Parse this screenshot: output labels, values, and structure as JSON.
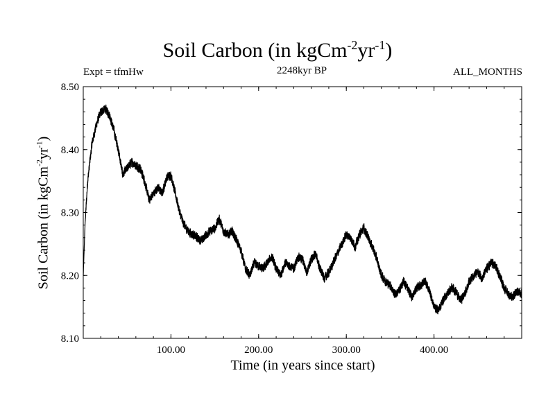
{
  "chart_data": {
    "type": "line",
    "title": "Soil Carbon (in kgCm",
    "title_sup1": "-2",
    "title_mid": "yr",
    "title_sup2": "-1",
    "title_close": ")",
    "expt_label": "Expt = tfmHw",
    "period_label": "2248kyr BP",
    "months_label": "ALL_MONTHS",
    "xlabel": "Time (in years since start)",
    "ylabel": "Soil Carbon (in kgCm",
    "ylabel_sup1": "-2",
    "ylabel_mid": "yr",
    "ylabel_sup2": "-1",
    "ylabel_close": ")",
    "xlim": [
      0,
      500
    ],
    "ylim": [
      8.1,
      8.5
    ],
    "xticks": [
      {
        "value": 100,
        "label": "100.00"
      },
      {
        "value": 200,
        "label": "200.00"
      },
      {
        "value": 300,
        "label": "300.00"
      },
      {
        "value": 400,
        "label": "400.00"
      }
    ],
    "yticks": [
      {
        "value": 8.1,
        "label": "8.10"
      },
      {
        "value": 8.2,
        "label": "8.20"
      },
      {
        "value": 8.3,
        "label": "8.30"
      },
      {
        "value": 8.4,
        "label": "8.40"
      },
      {
        "value": 8.5,
        "label": "8.50"
      }
    ],
    "line_color": "#000000",
    "series": [
      {
        "name": "Soil Carbon",
        "x": [
          0,
          2,
          5,
          10,
          15,
          20,
          25,
          30,
          35,
          40,
          45,
          50,
          55,
          60,
          65,
          70,
          75,
          80,
          85,
          90,
          95,
          100,
          105,
          110,
          115,
          120,
          125,
          130,
          135,
          140,
          145,
          150,
          155,
          160,
          165,
          170,
          175,
          180,
          185,
          190,
          195,
          200,
          205,
          210,
          215,
          220,
          225,
          230,
          235,
          240,
          245,
          250,
          255,
          260,
          265,
          270,
          275,
          280,
          285,
          290,
          295,
          300,
          305,
          310,
          315,
          320,
          325,
          330,
          335,
          340,
          345,
          350,
          355,
          360,
          365,
          370,
          375,
          380,
          385,
          390,
          395,
          400,
          405,
          410,
          415,
          420,
          425,
          430,
          435,
          440,
          445,
          450,
          455,
          460,
          465,
          470,
          475,
          480,
          485,
          490,
          495,
          500
        ],
        "y": [
          8.2,
          8.28,
          8.35,
          8.41,
          8.44,
          8.46,
          8.465,
          8.455,
          8.43,
          8.4,
          8.36,
          8.37,
          8.38,
          8.375,
          8.37,
          8.35,
          8.32,
          8.33,
          8.34,
          8.33,
          8.355,
          8.36,
          8.33,
          8.3,
          8.28,
          8.27,
          8.265,
          8.26,
          8.255,
          8.265,
          8.27,
          8.275,
          8.29,
          8.27,
          8.265,
          8.27,
          8.255,
          8.24,
          8.21,
          8.2,
          8.22,
          8.215,
          8.21,
          8.22,
          8.23,
          8.21,
          8.2,
          8.22,
          8.215,
          8.21,
          8.23,
          8.225,
          8.205,
          8.225,
          8.235,
          8.21,
          8.195,
          8.205,
          8.22,
          8.235,
          8.25,
          8.265,
          8.26,
          8.245,
          8.265,
          8.275,
          8.26,
          8.245,
          8.225,
          8.2,
          8.19,
          8.185,
          8.17,
          8.175,
          8.19,
          8.18,
          8.165,
          8.18,
          8.185,
          8.19,
          8.175,
          8.15,
          8.145,
          8.16,
          8.17,
          8.18,
          8.175,
          8.16,
          8.17,
          8.19,
          8.2,
          8.205,
          8.195,
          8.21,
          8.22,
          8.215,
          8.2,
          8.18,
          8.17,
          8.165,
          8.175,
          8.17
        ]
      }
    ]
  }
}
